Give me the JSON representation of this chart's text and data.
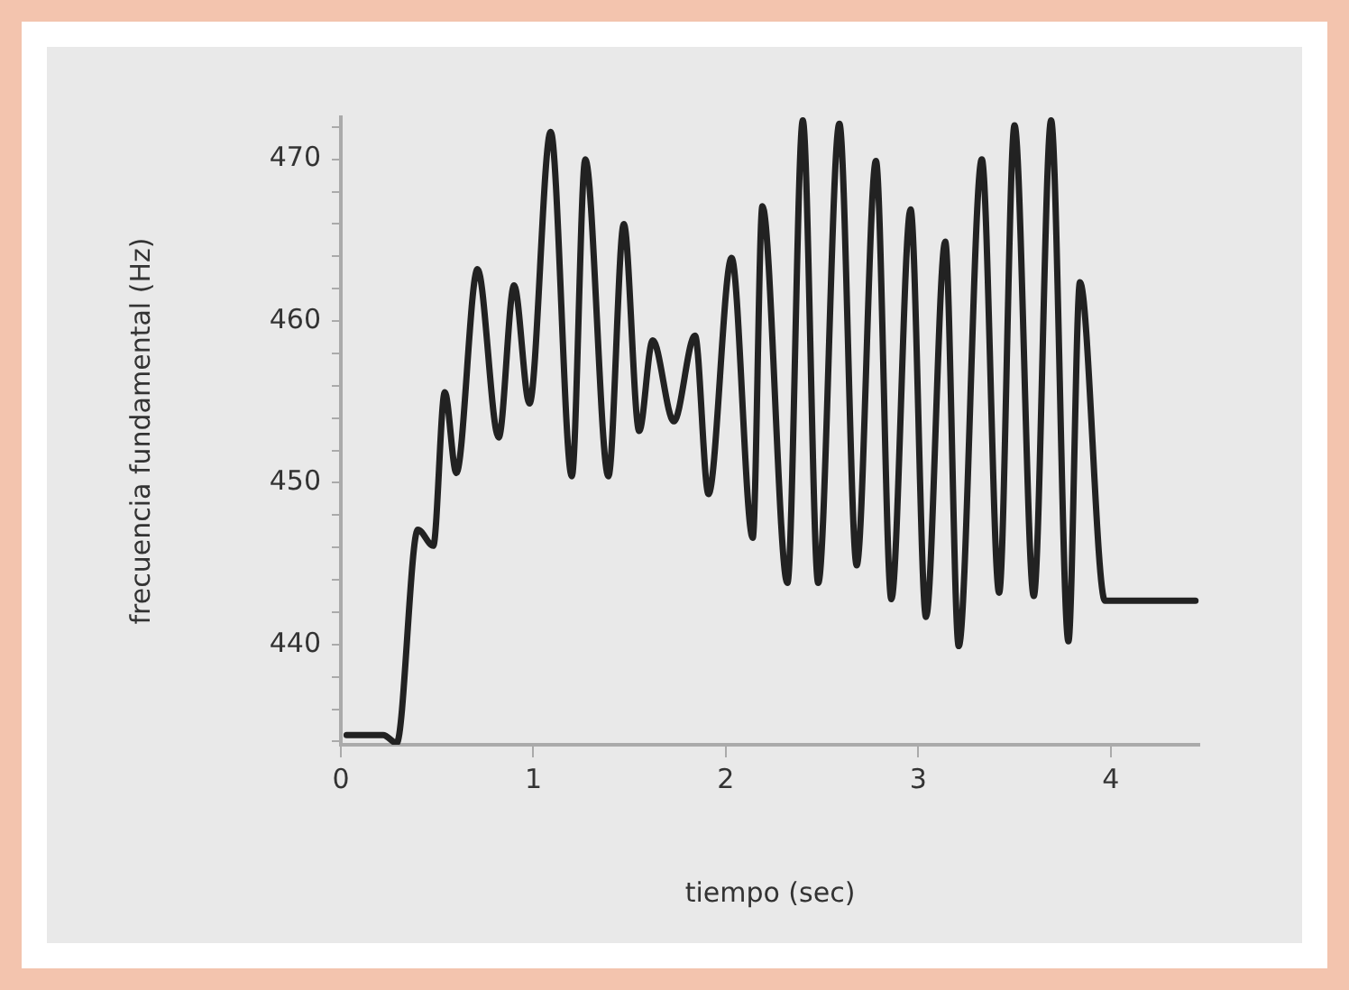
{
  "chart_data": {
    "type": "line",
    "xlabel": "tiempo (sec)",
    "ylabel": "frecuencia fundamental (Hz)",
    "color": "#222222",
    "marker": "none",
    "line_style": "solid",
    "grid": false,
    "legend": false,
    "x": [
      0.03,
      0.22,
      0.29,
      0.4,
      0.48,
      0.54,
      0.6,
      0.71,
      0.82,
      0.9,
      0.98,
      1.09,
      1.2,
      1.27,
      1.39,
      1.47,
      1.55,
      1.62,
      1.73,
      1.84,
      1.91,
      2.03,
      2.14,
      2.19,
      2.32,
      2.4,
      2.48,
      2.59,
      2.68,
      2.78,
      2.86,
      2.96,
      3.04,
      3.14,
      3.21,
      3.33,
      3.42,
      3.5,
      3.6,
      3.69,
      3.78,
      3.84,
      3.97,
      4.44
    ],
    "values": [
      434.4,
      434.4,
      433.9,
      447.1,
      446.1,
      455.6,
      450.6,
      463.2,
      452.8,
      462.2,
      454.9,
      471.7,
      450.4,
      470.0,
      450.4,
      466.0,
      453.2,
      458.8,
      453.8,
      459.1,
      449.3,
      463.9,
      446.6,
      467.1,
      443.8,
      472.4,
      443.8,
      472.2,
      444.9,
      469.9,
      442.8,
      466.9,
      441.7,
      464.9,
      439.9,
      470.0,
      443.2,
      472.1,
      443.0,
      472.4,
      440.2,
      462.4,
      442.7,
      442.7
    ],
    "xlim": [
      0,
      4.46
    ],
    "xticks": [
      0,
      1,
      2,
      3,
      4
    ],
    "ylim": [
      433.8,
      472.6
    ],
    "yticks": [
      {
        "value": 434,
        "label": null
      },
      {
        "value": 436,
        "label": null
      },
      {
        "value": 438,
        "label": null
      },
      440,
      {
        "value": 442,
        "label": null
      },
      {
        "value": 444,
        "label": null
      },
      {
        "value": 446,
        "label": null
      },
      {
        "value": 448,
        "label": null
      },
      450,
      {
        "value": 452,
        "label": null
      },
      {
        "value": 454,
        "label": null
      },
      {
        "value": 456,
        "label": null
      },
      {
        "value": 458,
        "label": null
      },
      460,
      {
        "value": 462,
        "label": null
      },
      {
        "value": 464,
        "label": null
      },
      {
        "value": 466,
        "label": null
      },
      {
        "value": 468,
        "label": null
      },
      470,
      {
        "value": 472,
        "label": null
      }
    ]
  }
}
